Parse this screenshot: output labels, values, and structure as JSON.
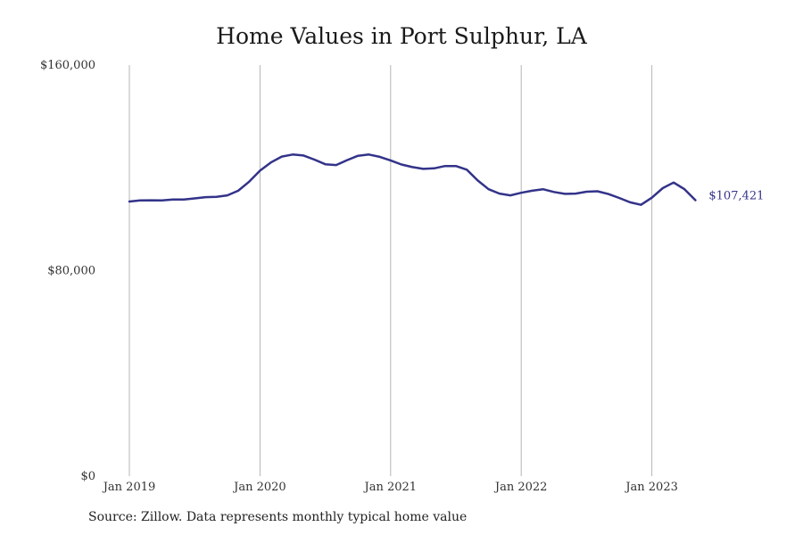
{
  "chart_data": {
    "type": "line",
    "title": "Home Values in Port Sulphur, LA",
    "source": "Source: Zillow. Data represents monthly typical home value",
    "ylim": [
      0,
      160000
    ],
    "y_ticks": [
      0,
      80000,
      160000
    ],
    "y_tick_labels": [
      "$0",
      "$80,000",
      "$160,000"
    ],
    "x_tick_dates": [
      "2019-01",
      "2020-01",
      "2021-01",
      "2022-01",
      "2023-01"
    ],
    "x_tick_labels": [
      "Jan 2019",
      "Jan 2020",
      "Jan 2021",
      "Jan 2022",
      "Jan 2023"
    ],
    "grid": "vertical",
    "line_color": "#33338a",
    "end_label": "$107,421",
    "series": [
      {
        "x": [
          "2019-01",
          "2019-02",
          "2019-03",
          "2019-04",
          "2019-05",
          "2019-06",
          "2019-07",
          "2019-08",
          "2019-09",
          "2019-10",
          "2019-11",
          "2019-12",
          "2020-01",
          "2020-02",
          "2020-03",
          "2020-04",
          "2020-05",
          "2020-06",
          "2020-07",
          "2020-08",
          "2020-09",
          "2020-10",
          "2020-11",
          "2020-12",
          "2021-01",
          "2021-02",
          "2021-03",
          "2021-04",
          "2021-05",
          "2021-06",
          "2021-07",
          "2021-08",
          "2021-09",
          "2021-10",
          "2021-11",
          "2021-12",
          "2022-01",
          "2022-02",
          "2022-03",
          "2022-04",
          "2022-05",
          "2022-06",
          "2022-07",
          "2022-08",
          "2022-09",
          "2022-10",
          "2022-11",
          "2022-12",
          "2023-01",
          "2023-02",
          "2023-03",
          "2023-04",
          "2023-05"
        ],
        "values": [
          106900,
          107300,
          107400,
          107300,
          107700,
          107700,
          108100,
          108600,
          108700,
          109300,
          111100,
          114600,
          118900,
          122100,
          124400,
          125200,
          124800,
          123200,
          121400,
          121100,
          123000,
          124700,
          125200,
          124300,
          122900,
          121300,
          120300,
          119600,
          119800,
          120700,
          120700,
          119300,
          115100,
          111700,
          110000,
          109300,
          110300,
          111100,
          111700,
          110600,
          109900,
          110000,
          110700,
          110900,
          109800,
          108300,
          106600,
          105600,
          108400,
          112100,
          114300,
          111700,
          107421
        ]
      }
    ]
  }
}
